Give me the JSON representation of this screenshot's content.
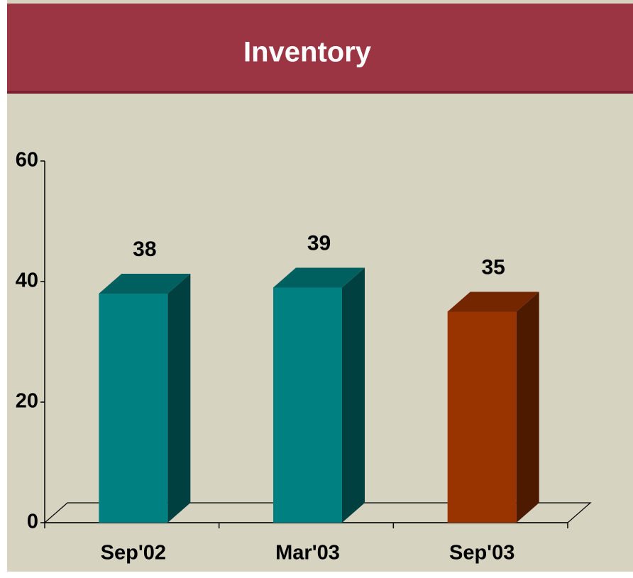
{
  "chart_data": {
    "type": "bar3d",
    "title": "Inventory",
    "categories": [
      "Sep'02",
      "Mar'03",
      "Sep'03"
    ],
    "values": [
      38,
      39,
      35
    ],
    "colors": [
      "#008080",
      "#008080",
      "#993300"
    ],
    "ylim": [
      0,
      60
    ],
    "yticks": [
      0,
      20,
      40,
      60
    ],
    "grid": false
  }
}
